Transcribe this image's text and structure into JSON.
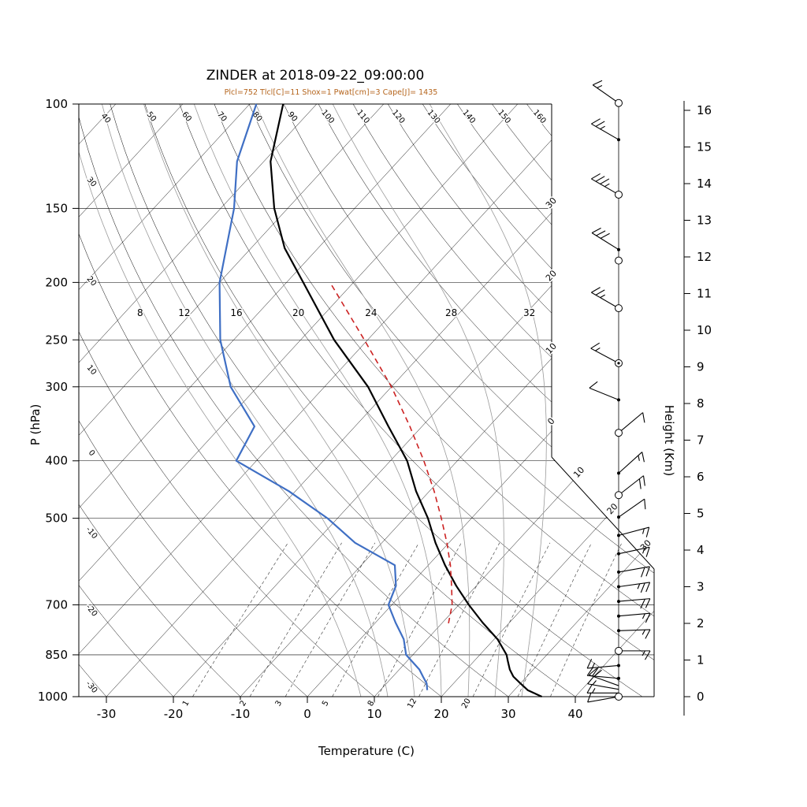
{
  "title": "ZINDER at 2018-09-22_09:00:00",
  "subtitle": "Plcl=752 Tlcl[C]=11 Shox=1 Pwat[cm]=3 Cape[J]= 1435",
  "axes": {
    "x_label": "Temperature (C)",
    "y_left_label": "P (hPa)",
    "y_right_label": "Height (Km)"
  },
  "colors": {
    "temperature_line": "#000000",
    "dewpoint_line": "#3f6fc4",
    "parcel_line": "#cc2222",
    "subtitle_text": "#b5651d",
    "moist_adiabat": "#9a9a9a",
    "grid": "#000000"
  },
  "chart_data": {
    "type": "skewt-log-p",
    "station": "ZINDER",
    "timestamp": "2018-09-22_09:00:00",
    "indices": {
      "Plcl_hPa": 752,
      "Tlcl_C": 11,
      "Shox": 1,
      "Pwat_cm": 3,
      "Cape_J": 1435
    },
    "pressure_ticks_hPa": [
      100,
      150,
      200,
      250,
      300,
      400,
      500,
      700,
      850,
      1000
    ],
    "temperature_ticks_C": [
      -30,
      -20,
      -10,
      0,
      10,
      20,
      30,
      40
    ],
    "height_ticks_km": [
      0,
      1,
      2,
      3,
      4,
      5,
      6,
      7,
      8,
      9,
      10,
      11,
      12,
      13,
      14,
      15,
      16
    ],
    "dry_adiabat_labels_top": [
      50,
      60,
      70,
      80,
      90,
      100,
      110,
      120,
      130,
      140,
      150,
      160
    ],
    "dry_adiabat_labels_left": [
      40,
      30,
      20,
      10,
      0,
      -10,
      -20,
      -30
    ],
    "isotherm_edge_labels": [
      {
        "t": -30,
        "text": "30"
      },
      {
        "t": -20,
        "text": "20"
      },
      {
        "t": -10,
        "text": "10"
      },
      {
        "t": 0,
        "text": "0"
      },
      {
        "t": 10,
        "text": "10"
      },
      {
        "t": 20,
        "text": "20"
      },
      {
        "t": 30,
        "text": "30"
      }
    ],
    "moist_adiabat_thetaw_C": [
      8,
      12,
      16,
      20,
      24,
      28,
      32
    ],
    "mixing_ratio_lines_gkg": [
      1,
      2,
      3,
      5,
      8,
      12,
      20,
      30,
      40
    ],
    "mixing_ratio_labeled_gkg": [
      1,
      2,
      3,
      5,
      8,
      12,
      20
    ],
    "series": [
      {
        "name": "temperature",
        "style": "solid",
        "width": 2.2,
        "points_p_t": [
          [
            1000,
            35
          ],
          [
            975,
            32
          ],
          [
            950,
            30
          ],
          [
            925,
            28
          ],
          [
            900,
            26.5
          ],
          [
            870,
            25
          ],
          [
            850,
            24
          ],
          [
            800,
            20.5
          ],
          [
            750,
            16
          ],
          [
            700,
            11.5
          ],
          [
            650,
            7
          ],
          [
            600,
            2.5
          ],
          [
            550,
            -2
          ],
          [
            500,
            -6.5
          ],
          [
            450,
            -12
          ],
          [
            400,
            -17.5
          ],
          [
            350,
            -25
          ],
          [
            300,
            -33.5
          ],
          [
            250,
            -45
          ],
          [
            200,
            -57.5
          ],
          [
            175,
            -65
          ],
          [
            150,
            -72
          ],
          [
            125,
            -79
          ],
          [
            100,
            -85
          ]
        ]
      },
      {
        "name": "dewpoint",
        "style": "solid",
        "width": 2.2,
        "points_p_t": [
          [
            975,
            17
          ],
          [
            950,
            16
          ],
          [
            925,
            14.5
          ],
          [
            900,
            13
          ],
          [
            850,
            9
          ],
          [
            800,
            6.5
          ],
          [
            750,
            3
          ],
          [
            700,
            -0.5
          ],
          [
            650,
            -2
          ],
          [
            600,
            -5
          ],
          [
            550,
            -14
          ],
          [
            500,
            -21.5
          ],
          [
            450,
            -31
          ],
          [
            400,
            -43
          ],
          [
            350,
            -45
          ],
          [
            300,
            -54
          ],
          [
            250,
            -62
          ],
          [
            200,
            -70
          ],
          [
            150,
            -78
          ],
          [
            125,
            -84
          ],
          [
            100,
            -89
          ]
        ]
      },
      {
        "name": "parcel",
        "style": "dashed",
        "width": 1.6,
        "points_p_t": [
          [
            752,
            11
          ],
          [
            700,
            9
          ],
          [
            650,
            6.3
          ],
          [
            600,
            3.3
          ],
          [
            550,
            -0.3
          ],
          [
            500,
            -4.5
          ],
          [
            450,
            -9.3
          ],
          [
            400,
            -15
          ],
          [
            350,
            -21.8
          ],
          [
            300,
            -30
          ],
          [
            250,
            -40.5
          ],
          [
            200,
            -53.5
          ]
        ]
      }
    ],
    "wind_barbs_approx": [
      {
        "km": 16.2,
        "marker": "circle",
        "angle": -55,
        "kt": 15
      },
      {
        "km": 15.2,
        "marker": "dot",
        "angle": -60,
        "kt": 25
      },
      {
        "km": 13.7,
        "marker": "circle",
        "angle": -60,
        "kt": 35
      },
      {
        "km": 12.2,
        "marker": "dot",
        "angle": -58,
        "kt": 30
      },
      {
        "km": 11.9,
        "marker": "circle",
        "angle": 0,
        "kt": 0
      },
      {
        "km": 10.6,
        "marker": "circle",
        "angle": -60,
        "kt": 25
      },
      {
        "km": 9.1,
        "marker": "circle-dot",
        "angle": -62,
        "kt": 15
      },
      {
        "km": 8.1,
        "marker": "dot",
        "angle": -68,
        "kt": 10
      },
      {
        "km": 7.2,
        "marker": "circle",
        "angle": 50,
        "kt": 10
      },
      {
        "km": 6.1,
        "marker": "dot",
        "angle": 48,
        "kt": 15
      },
      {
        "km": 5.5,
        "marker": "circle",
        "angle": 52,
        "kt": 20
      },
      {
        "km": 4.9,
        "marker": "dot",
        "angle": 55,
        "kt": 10
      },
      {
        "km": 4.4,
        "marker": "dot",
        "angle": 75,
        "kt": 15
      },
      {
        "km": 3.9,
        "marker": "dot",
        "angle": 78,
        "kt": 15
      },
      {
        "km": 3.4,
        "marker": "dot",
        "angle": 80,
        "kt": 20
      },
      {
        "km": 3.0,
        "marker": "dot",
        "angle": 82,
        "kt": 25
      },
      {
        "km": 2.6,
        "marker": "dot",
        "angle": 85,
        "kt": 20
      },
      {
        "km": 2.2,
        "marker": "dot",
        "angle": 85,
        "kt": 15
      },
      {
        "km": 1.8,
        "marker": "dot",
        "angle": 88,
        "kt": 15
      },
      {
        "km": 1.25,
        "marker": "circle",
        "angle": 90,
        "kt": 15
      },
      {
        "km": 0.85,
        "marker": "dot",
        "angle": -95,
        "kt": 15
      },
      {
        "km": 0.5,
        "marker": "dot",
        "angle": -85,
        "kt": 20
      },
      {
        "km": 0.3,
        "marker": "none",
        "angle": -70,
        "kt": 20
      },
      {
        "km": 0.2,
        "marker": "none",
        "angle": -80,
        "kt": 15
      },
      {
        "km": 0.1,
        "marker": "none",
        "angle": -90,
        "kt": 15
      },
      {
        "km": 0.0,
        "marker": "circle",
        "angle": -100,
        "kt": 10
      }
    ]
  }
}
